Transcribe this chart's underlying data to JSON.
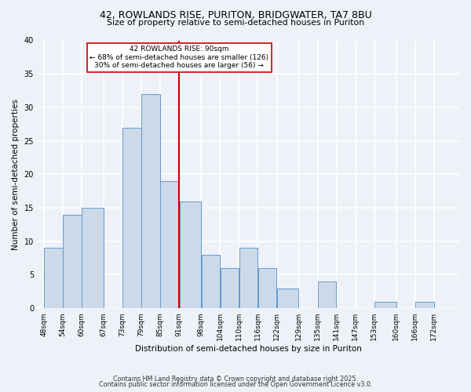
{
  "title": "42, ROWLANDS RISE, PURITON, BRIDGWATER, TA7 8BU",
  "subtitle": "Size of property relative to semi-detached houses in Puriton",
  "xlabel": "Distribution of semi-detached houses by size in Puriton",
  "ylabel": "Number of semi-detached properties",
  "bin_labels": [
    "48sqm",
    "54sqm",
    "60sqm",
    "67sqm",
    "73sqm",
    "79sqm",
    "85sqm",
    "91sqm",
    "98sqm",
    "104sqm",
    "110sqm",
    "116sqm",
    "122sqm",
    "129sqm",
    "135sqm",
    "141sqm",
    "147sqm",
    "153sqm",
    "160sqm",
    "166sqm",
    "172sqm"
  ],
  "bin_edges": [
    48,
    54,
    60,
    67,
    73,
    79,
    85,
    91,
    98,
    104,
    110,
    116,
    122,
    129,
    135,
    141,
    147,
    153,
    160,
    166,
    172
  ],
  "bar_heights": [
    9,
    14,
    15,
    0,
    27,
    32,
    19,
    16,
    8,
    6,
    9,
    6,
    3,
    0,
    4,
    0,
    0,
    1,
    0,
    1,
    0
  ],
  "bar_color": "#ccd9e8",
  "bar_edge_color": "#6699cc",
  "vline_x": 91,
  "vline_color": "#cc0000",
  "annotation_title": "42 ROWLANDS RISE: 90sqm",
  "annotation_line1": "← 68% of semi-detached houses are smaller (126)",
  "annotation_line2": "30% of semi-detached houses are larger (56) →",
  "annotation_box_color": "#ffffff",
  "annotation_box_edge": "#cc0000",
  "ylim": [
    0,
    40
  ],
  "yticks": [
    0,
    5,
    10,
    15,
    20,
    25,
    30,
    35,
    40
  ],
  "footer1": "Contains HM Land Registry data © Crown copyright and database right 2025.",
  "footer2": "Contains public sector information licensed under the Open Government Licence v3.0.",
  "bg_color": "#eef2f8",
  "grid_color": "#ffffff"
}
